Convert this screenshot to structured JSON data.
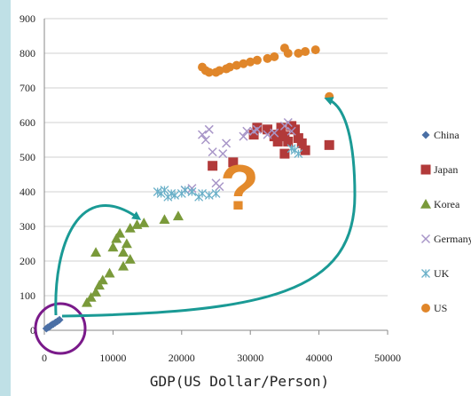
{
  "chart_data": {
    "type": "scatter",
    "xlabel": "GDP(US Dollar/Person)",
    "ylabel": "",
    "xlim": [
      0,
      50000
    ],
    "ylim": [
      0,
      900
    ],
    "x_ticks": [
      0,
      10000,
      20000,
      30000,
      40000,
      50000
    ],
    "y_ticks": [
      0,
      100,
      200,
      300,
      400,
      500,
      600,
      700,
      800,
      900
    ],
    "grid": "horizontal",
    "legend_position": "right",
    "annotations": [
      "?"
    ],
    "series": [
      {
        "name": "China",
        "marker": "diamond",
        "color": "#4a6fa5",
        "points": [
          [
            300,
            5
          ],
          [
            500,
            8
          ],
          [
            700,
            10
          ],
          [
            900,
            13
          ],
          [
            1100,
            16
          ],
          [
            1300,
            18
          ],
          [
            1600,
            22
          ],
          [
            1900,
            26
          ],
          [
            2200,
            30
          ]
        ]
      },
      {
        "name": "Japan",
        "marker": "square",
        "color": "#b23a3a",
        "points": [
          [
            24500,
            475
          ],
          [
            27500,
            485
          ],
          [
            30500,
            565
          ],
          [
            31000,
            585
          ],
          [
            32500,
            580
          ],
          [
            33500,
            560
          ],
          [
            34000,
            565
          ],
          [
            34500,
            585
          ],
          [
            35000,
            560
          ],
          [
            35500,
            545
          ],
          [
            36000,
            590
          ],
          [
            36500,
            580
          ],
          [
            37000,
            555
          ],
          [
            37500,
            540
          ],
          [
            38000,
            520
          ],
          [
            41500,
            535
          ],
          [
            35000,
            510
          ],
          [
            34000,
            545
          ]
        ]
      },
      {
        "name": "Korea",
        "marker": "triangle",
        "color": "#7a9a3a",
        "points": [
          [
            6200,
            80
          ],
          [
            6800,
            95
          ],
          [
            7500,
            110
          ],
          [
            8000,
            130
          ],
          [
            8500,
            145
          ],
          [
            9500,
            165
          ],
          [
            10000,
            240
          ],
          [
            10500,
            265
          ],
          [
            11000,
            280
          ],
          [
            11500,
            225
          ],
          [
            12000,
            250
          ],
          [
            12500,
            205
          ],
          [
            11500,
            185
          ],
          [
            7500,
            225
          ],
          [
            12500,
            295
          ],
          [
            13500,
            305
          ],
          [
            14500,
            310
          ],
          [
            17500,
            320
          ],
          [
            19500,
            330
          ]
        ]
      },
      {
        "name": "Germany",
        "marker": "x",
        "color": "#a896c8",
        "points": [
          [
            20500,
            405
          ],
          [
            21500,
            410
          ],
          [
            23000,
            565
          ],
          [
            23500,
            550
          ],
          [
            24000,
            580
          ],
          [
            24500,
            515
          ],
          [
            25000,
            425
          ],
          [
            25500,
            415
          ],
          [
            26000,
            510
          ],
          [
            26500,
            540
          ],
          [
            29000,
            560
          ],
          [
            29500,
            575
          ],
          [
            30500,
            575
          ],
          [
            31000,
            580
          ],
          [
            32500,
            565
          ],
          [
            33500,
            570
          ],
          [
            35000,
            590
          ],
          [
            35500,
            600
          ],
          [
            36000,
            575
          ]
        ]
      },
      {
        "name": "UK",
        "marker": "asterisk",
        "color": "#6ab0c8",
        "points": [
          [
            16500,
            400
          ],
          [
            17000,
            395
          ],
          [
            17500,
            405
          ],
          [
            18000,
            385
          ],
          [
            18500,
            395
          ],
          [
            19000,
            390
          ],
          [
            20000,
            395
          ],
          [
            20500,
            405
          ],
          [
            21500,
            400
          ],
          [
            22500,
            385
          ],
          [
            23000,
            395
          ],
          [
            24000,
            390
          ],
          [
            25000,
            395
          ],
          [
            36000,
            525
          ],
          [
            36500,
            520
          ],
          [
            37000,
            510
          ]
        ]
      },
      {
        "name": "US",
        "marker": "circle",
        "color": "#e0862a",
        "points": [
          [
            23000,
            760
          ],
          [
            23500,
            750
          ],
          [
            24000,
            745
          ],
          [
            25000,
            745
          ],
          [
            25500,
            750
          ],
          [
            26500,
            755
          ],
          [
            27000,
            760
          ],
          [
            28000,
            765
          ],
          [
            29000,
            770
          ],
          [
            30000,
            775
          ],
          [
            31000,
            780
          ],
          [
            32500,
            785
          ],
          [
            33500,
            790
          ],
          [
            35000,
            815
          ],
          [
            35500,
            800
          ],
          [
            37000,
            800
          ],
          [
            38000,
            805
          ],
          [
            39500,
            810
          ],
          [
            41500,
            675
          ]
        ]
      }
    ]
  }
}
